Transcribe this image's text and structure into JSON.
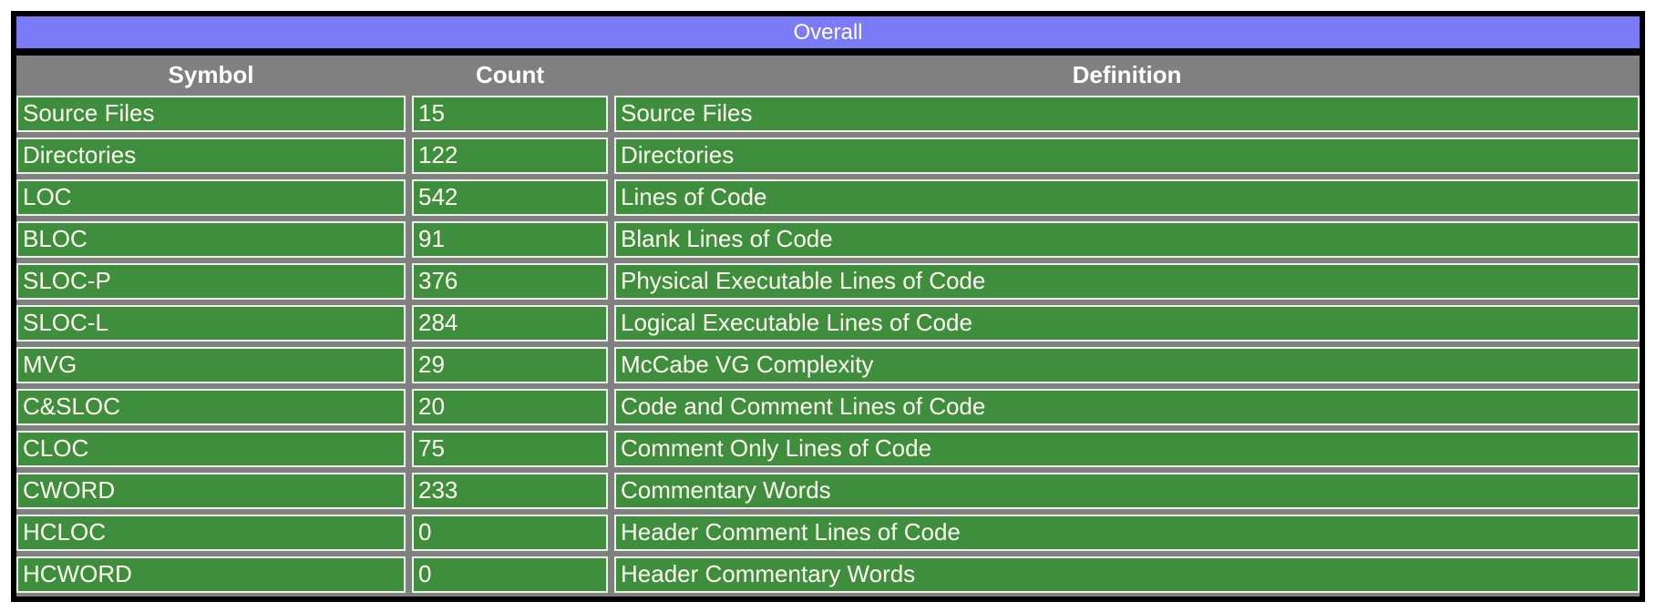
{
  "table": {
    "title": "Overall",
    "columns": [
      "Symbol",
      "Count",
      "Definition"
    ],
    "rows": [
      {
        "symbol": "Source Files",
        "count": "15",
        "definition": "Source Files"
      },
      {
        "symbol": "Directories",
        "count": "122",
        "definition": "Directories"
      },
      {
        "symbol": "LOC",
        "count": "542",
        "definition": "Lines of Code"
      },
      {
        "symbol": "BLOC",
        "count": "91",
        "definition": "Blank Lines of Code"
      },
      {
        "symbol": "SLOC-P",
        "count": "376",
        "definition": "Physical Executable Lines of Code"
      },
      {
        "symbol": "SLOC-L",
        "count": "284",
        "definition": "Logical Executable Lines of Code"
      },
      {
        "symbol": "MVG",
        "count": "29",
        "definition": "McCabe VG Complexity"
      },
      {
        "symbol": "C&SLOC",
        "count": "20",
        "definition": "Code and Comment Lines of Code"
      },
      {
        "symbol": "CLOC",
        "count": "75",
        "definition": "Comment Only Lines of Code"
      },
      {
        "symbol": "CWORD",
        "count": "233",
        "definition": "Commentary Words"
      },
      {
        "symbol": "HCLOC",
        "count": "0",
        "definition": "Header Comment Lines of Code"
      },
      {
        "symbol": "HCWORD",
        "count": "0",
        "definition": "Header Commentary Words"
      }
    ]
  },
  "colors": {
    "frame": "#000000",
    "table_bg": "#808080",
    "title_bar_bg": "#7B7BF8",
    "cell_bg": "#3E8E3E",
    "cell_border": "#EFEFEF",
    "cell_text": "#FFFFF0",
    "header_text": "#FFFFFF",
    "page_bg": "#FFFFFF"
  }
}
